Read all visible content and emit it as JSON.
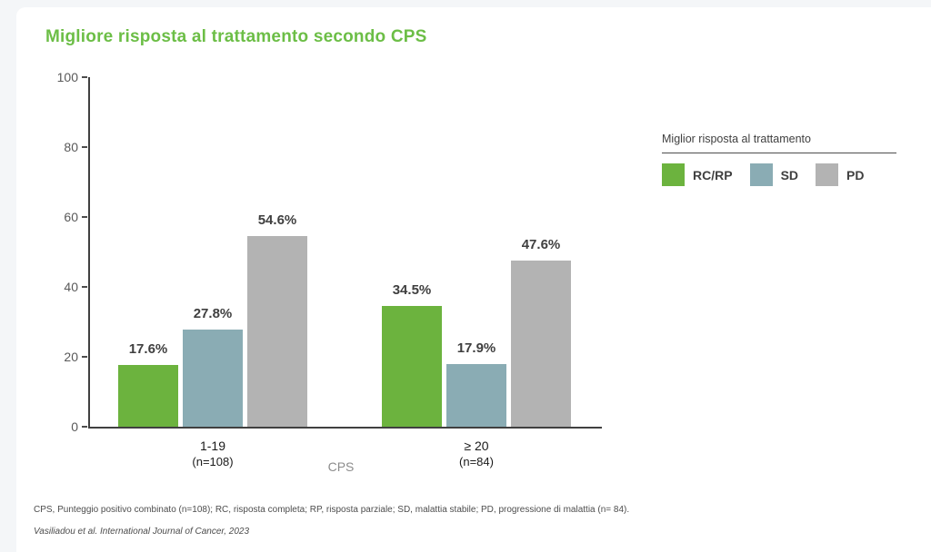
{
  "window": {
    "background": "#f4f6f8",
    "panel_background": "#ffffff"
  },
  "title": {
    "text": "Migliore risposta al trattamento secondo CPS",
    "color": "#6cbe46"
  },
  "chart_data": {
    "type": "bar",
    "title": "Migliore risposta al trattamento secondo CPS",
    "categories": [
      "1-19",
      "≥ 20"
    ],
    "category_sublabels": [
      "(n=108)",
      "(n=84)"
    ],
    "series": [
      {
        "name": "RC/RP",
        "color": "#6cb33e",
        "values": [
          17.6,
          34.5
        ]
      },
      {
        "name": "SD",
        "color": "#8aacb4",
        "values": [
          27.8,
          17.9
        ]
      },
      {
        "name": "PD",
        "color": "#b3b3b3",
        "values": [
          54.6,
          47.6
        ]
      }
    ],
    "value_label_suffix": "%",
    "xlabel": "CPS",
    "ylabel": "",
    "ylim": [
      0,
      100
    ],
    "yticks": [
      0,
      20,
      40,
      60,
      80,
      100
    ],
    "grid": false,
    "legend_title": "Miglior risposta al trattamento",
    "legend_position": "top-right"
  },
  "footnotes": {
    "abbreviations": "CPS, Punteggio positivo combinato (n=108); RC, risposta completa; RP, risposta parziale; SD, malattia stabile; PD, progressione di malattia (n= 84).",
    "citation": "Vasiliadou et al. International Journal of Cancer, 2023"
  }
}
